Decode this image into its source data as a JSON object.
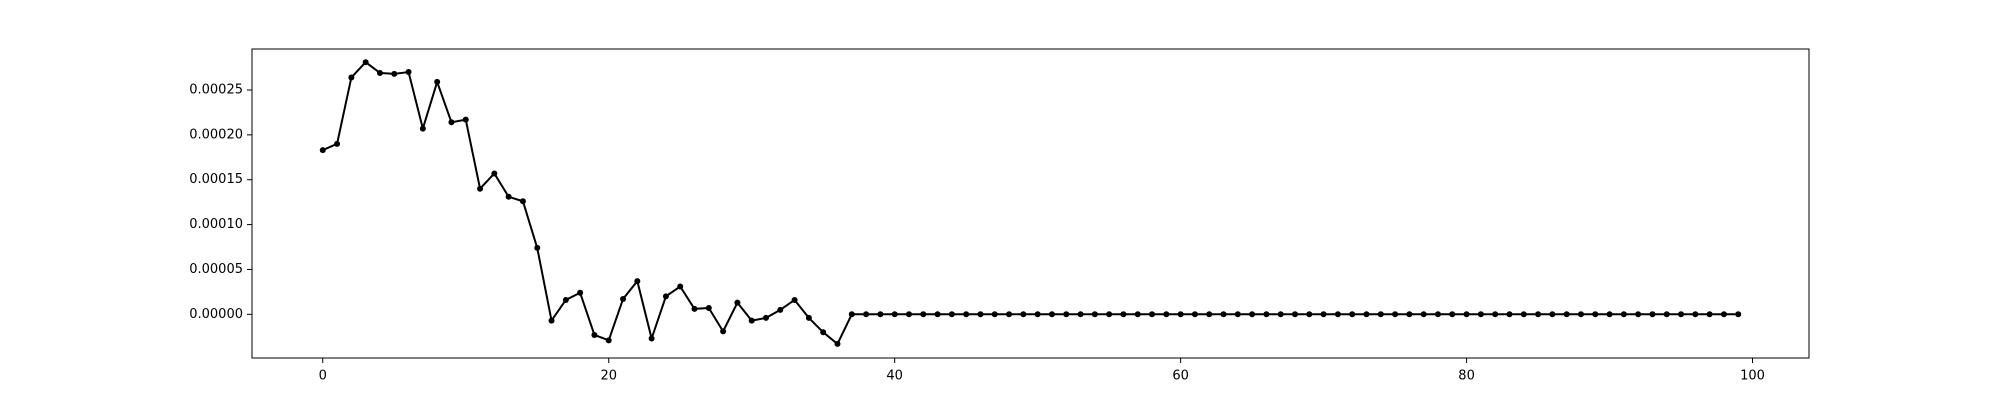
{
  "chart_data": {
    "type": "line",
    "color": "#000000",
    "grid": false,
    "marker": true,
    "x": [
      0,
      1,
      2,
      3,
      4,
      5,
      6,
      7,
      8,
      9,
      10,
      11,
      12,
      13,
      14,
      15,
      16,
      17,
      18,
      19,
      20,
      21,
      22,
      23,
      24,
      25,
      26,
      27,
      28,
      29,
      30,
      31,
      32,
      33,
      34,
      35,
      36,
      37,
      38,
      39,
      40,
      41,
      42,
      43,
      44,
      45,
      46,
      47,
      48,
      49,
      50,
      51,
      52,
      53,
      54,
      55,
      56,
      57,
      58,
      59,
      60,
      61,
      62,
      63,
      64,
      65,
      66,
      67,
      68,
      69,
      70,
      71,
      72,
      73,
      74,
      75,
      76,
      77,
      78,
      79,
      80,
      81,
      82,
      83,
      84,
      85,
      86,
      87,
      88,
      89,
      90,
      91,
      92,
      93,
      94,
      95,
      96,
      97,
      98,
      99
    ],
    "values": [
      0.000183,
      0.00019,
      0.000264,
      0.000281,
      0.000269,
      0.000268,
      0.00027,
      0.000207,
      0.000259,
      0.000214,
      0.000217,
      0.00014,
      0.000157,
      0.000131,
      0.000126,
      7.4e-05,
      -7e-06,
      1.6e-05,
      2.4e-05,
      -2.3e-05,
      -2.9e-05,
      1.7e-05,
      3.7e-05,
      -2.7e-05,
      2e-05,
      3.1e-05,
      6e-06,
      7e-06,
      -1.9e-05,
      1.3e-05,
      -7e-06,
      -4e-06,
      5e-06,
      1.6e-05,
      -4e-06,
      -2e-05,
      -3.3e-05,
      0,
      0,
      0,
      0,
      0,
      0,
      0,
      0,
      0,
      0,
      0,
      0,
      0,
      0,
      0,
      0,
      0,
      0,
      0,
      0,
      0,
      0,
      0,
      0,
      0,
      0,
      0,
      0,
      0,
      0,
      0,
      0,
      0,
      0,
      0,
      0,
      0,
      0,
      0,
      0,
      0,
      0,
      0,
      0,
      0,
      0,
      0,
      0,
      0,
      0,
      0,
      0,
      0,
      0,
      0,
      0,
      0,
      0,
      0,
      0,
      0,
      0,
      0
    ],
    "xlim": [
      -4.95,
      103.95
    ],
    "xticks": [
      0,
      20,
      40,
      60,
      80,
      100
    ],
    "ylim": [
      -4.87e-05,
      0.0002957
    ],
    "yticks": [
      {
        "value": 0,
        "label": "0.00000"
      },
      {
        "value": 5e-05,
        "label": "0.00005"
      },
      {
        "value": 0.0001,
        "label": "0.00010"
      },
      {
        "value": 0.00015,
        "label": "0.00015"
      },
      {
        "value": 0.0002,
        "label": "0.00020"
      },
      {
        "value": 0.00025,
        "label": "0.00025"
      }
    ]
  }
}
